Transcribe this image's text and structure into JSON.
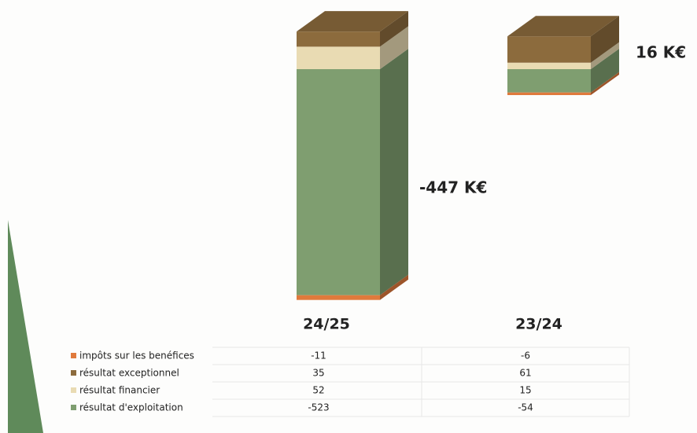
{
  "chart_data": {
    "type": "bar",
    "stacked": true,
    "categories": [
      "24/25",
      "23/24"
    ],
    "series": [
      {
        "name": "impôts sur les benéfices",
        "color": "#e07a3c",
        "values": [
          -11,
          -6
        ]
      },
      {
        "name": "résultat exceptionnel",
        "color": "#8c6b3d",
        "values": [
          35,
          61
        ]
      },
      {
        "name": "résultat financier",
        "color": "#e9dbb3",
        "values": [
          52,
          15
        ]
      },
      {
        "name": "résultat d'exploitation",
        "color": "#7f9e70",
        "values": [
          -523,
          -54
        ]
      }
    ],
    "annotations": [
      "-447 K€",
      "16 K€"
    ]
  }
}
